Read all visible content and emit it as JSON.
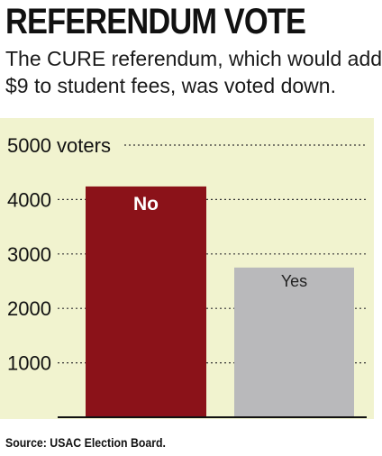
{
  "header": {
    "title": "REFERENDUM VOTE",
    "subtitle_line1": "The CURE referendum, which would add",
    "subtitle_line2": "$9 to student fees, was voted down."
  },
  "footer": {
    "source": "Source: USAC Election Board."
  },
  "colors": {
    "background": "#f1f3cf",
    "no_bar": "#8b1219",
    "yes_bar": "#b9b9bb",
    "text": "#111111"
  },
  "chart_data": {
    "type": "bar",
    "title": "REFERENDUM VOTE",
    "subtitle": "The CURE referendum, which would add $9 to student fees, was voted down.",
    "categories": [
      "No",
      "Yes"
    ],
    "values": [
      4240,
      2750
    ],
    "ylim": [
      0,
      5000
    ],
    "yticks": [
      1000,
      2000,
      3000,
      4000,
      5000
    ],
    "ytick_labels": [
      "1000",
      "2000",
      "3000",
      "4000",
      "5000 voters"
    ],
    "grid": "dotted horizontal",
    "xlabel": "",
    "ylabel": ""
  }
}
